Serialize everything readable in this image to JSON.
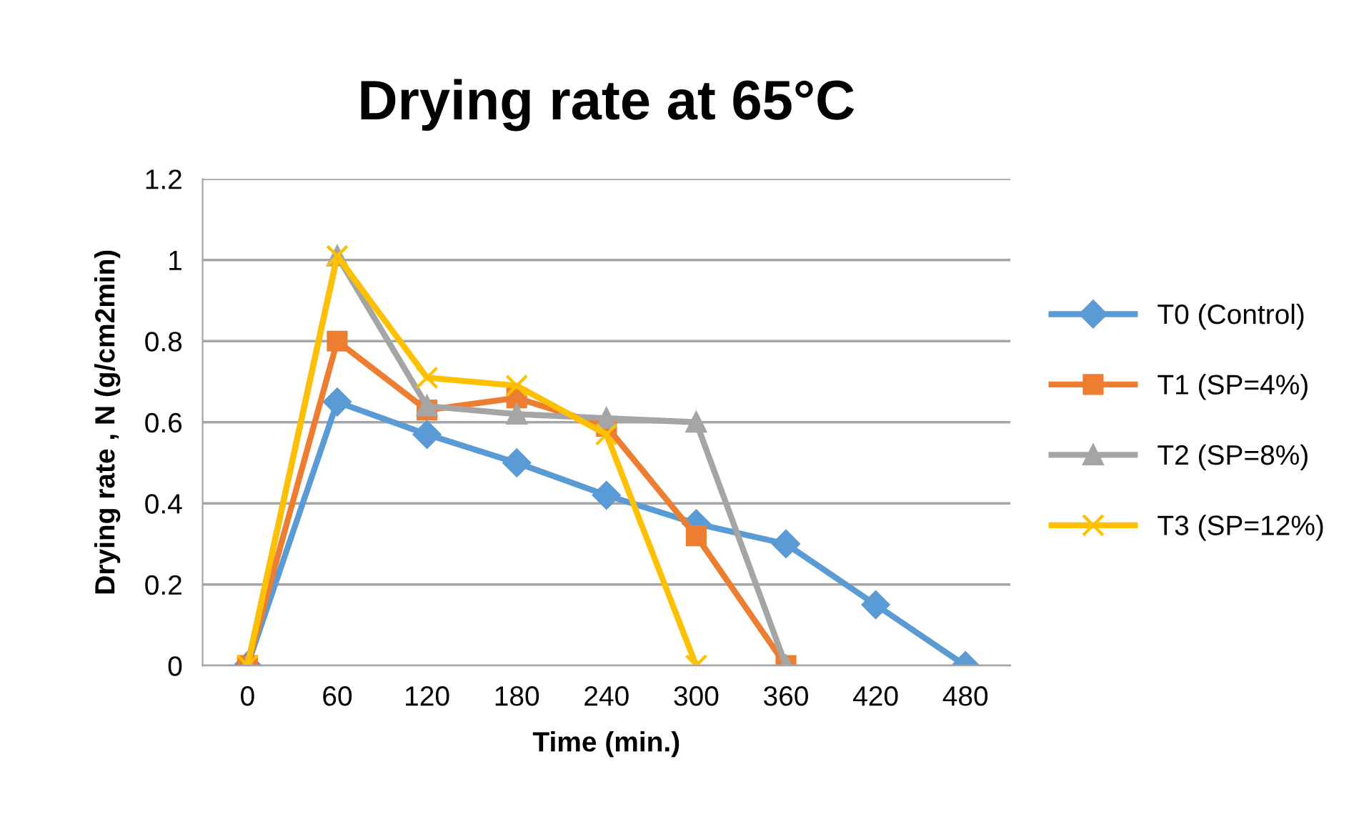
{
  "chart_data": {
    "type": "line",
    "title": "Drying rate at 65°C",
    "xlabel": "Time (min.)",
    "ylabel": "Drying rate , N (g/cm2min)",
    "categories": [
      "0",
      "60",
      "120",
      "180",
      "240",
      "300",
      "360",
      "420",
      "480"
    ],
    "series": [
      {
        "name": "T0 (Control)",
        "color": "#5b9bd5",
        "marker": "diamond",
        "values": [
          0,
          0.65,
          0.57,
          0.5,
          0.42,
          0.35,
          0.3,
          0.15,
          0
        ]
      },
      {
        "name": "T1 (SP=4%)",
        "color": "#ed7d31",
        "marker": "square",
        "values": [
          0,
          0.8,
          0.63,
          0.66,
          0.59,
          0.32,
          0,
          null,
          null
        ]
      },
      {
        "name": "T2 (SP=8%)",
        "color": "#a5a5a5",
        "marker": "triangle",
        "values": [
          0,
          1.01,
          0.64,
          0.62,
          0.61,
          0.6,
          0,
          null,
          null
        ]
      },
      {
        "name": "T3 (SP=12%)",
        "color": "#ffc000",
        "marker": "cross",
        "values": [
          0,
          1.01,
          0.71,
          0.69,
          0.57,
          0,
          null,
          null,
          null
        ]
      }
    ],
    "ylim": [
      0,
      1.2
    ],
    "yticks": [
      0,
      0.2,
      0.4,
      0.6,
      0.8,
      1,
      1.2
    ],
    "grid": "y",
    "legend": "right",
    "line_style": "solid"
  }
}
